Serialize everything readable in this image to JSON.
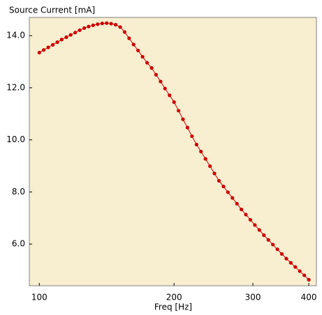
{
  "chart_data": {
    "type": "line",
    "ylabel": "Source Current [mA]",
    "xlabel": "Freq [Hz]",
    "x": [
      100.0,
      102.3,
      104.7,
      107.2,
      109.7,
      112.2,
      114.9,
      117.5,
      120.3,
      123.1,
      126.0,
      128.9,
      131.9,
      135.0,
      138.2,
      141.4,
      144.7,
      148.1,
      151.6,
      155.1,
      158.7,
      162.4,
      166.2,
      170.1,
      174.1,
      178.2,
      182.3,
      186.6,
      190.9,
      195.4,
      200.0,
      204.7,
      209.4,
      214.3,
      219.3,
      224.5,
      229.7,
      235.1,
      240.6,
      246.2,
      252.0,
      257.9,
      263.9,
      270.1,
      276.4,
      282.8,
      289.4,
      296.2,
      303.1,
      310.2,
      317.5,
      324.9,
      332.5,
      340.3,
      348.2,
      356.4,
      364.7,
      373.2,
      381.9,
      390.9,
      400.0
    ],
    "values": [
      13.35,
      13.45,
      13.55,
      13.65,
      13.75,
      13.85,
      13.94,
      14.03,
      14.12,
      14.21,
      14.29,
      14.35,
      14.4,
      14.44,
      14.47,
      14.48,
      14.46,
      14.42,
      14.33,
      14.14,
      13.9,
      13.66,
      13.43,
      13.19,
      12.96,
      12.76,
      12.5,
      12.24,
      11.97,
      11.71,
      11.45,
      11.12,
      10.79,
      10.47,
      10.14,
      9.82,
      9.55,
      9.27,
      8.99,
      8.71,
      8.43,
      8.21,
      7.99,
      7.77,
      7.55,
      7.33,
      7.13,
      6.93,
      6.73,
      6.54,
      6.34,
      6.16,
      5.98,
      5.8,
      5.62,
      5.44,
      5.28,
      5.12,
      4.96,
      4.8,
      4.63
    ],
    "color": "#cc0000",
    "xscale": "log",
    "xlim": [
      95,
      416
    ],
    "xticks": [
      100,
      200,
      300,
      400
    ],
    "ylim": [
      4.4,
      14.7
    ],
    "yticks": [
      {
        "value": 6,
        "label": "6.0"
      },
      {
        "value": 8,
        "label": "8.0"
      },
      {
        "value": 10,
        "label": "10.0"
      },
      {
        "value": 12,
        "label": "12.0"
      },
      {
        "value": 14,
        "label": "14.0"
      }
    ],
    "plot_background": "#f8eed0"
  }
}
